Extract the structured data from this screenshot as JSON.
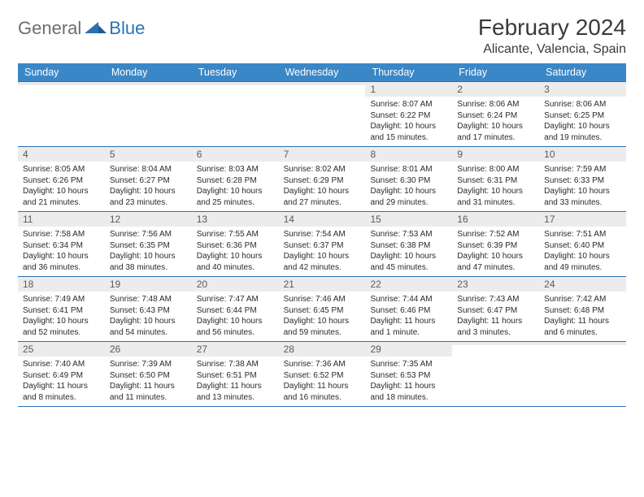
{
  "logo": {
    "general": "General",
    "blue": "Blue"
  },
  "title": "February 2024",
  "location": "Alicante, Valencia, Spain",
  "colors": {
    "header_bg": "#3a87c8",
    "border": "#2a72b5",
    "daynum_bg": "#ececec",
    "text": "#2a2a2a",
    "title_text": "#3a3a3a",
    "logo_gray": "#6e6e6e",
    "logo_blue": "#2a72b5"
  },
  "weekdays": [
    "Sunday",
    "Monday",
    "Tuesday",
    "Wednesday",
    "Thursday",
    "Friday",
    "Saturday"
  ],
  "weeks": [
    [
      {
        "n": "",
        "sr": "",
        "ss": "",
        "d1": "",
        "d2": ""
      },
      {
        "n": "",
        "sr": "",
        "ss": "",
        "d1": "",
        "d2": ""
      },
      {
        "n": "",
        "sr": "",
        "ss": "",
        "d1": "",
        "d2": ""
      },
      {
        "n": "",
        "sr": "",
        "ss": "",
        "d1": "",
        "d2": ""
      },
      {
        "n": "1",
        "sr": "Sunrise: 8:07 AM",
        "ss": "Sunset: 6:22 PM",
        "d1": "Daylight: 10 hours",
        "d2": "and 15 minutes."
      },
      {
        "n": "2",
        "sr": "Sunrise: 8:06 AM",
        "ss": "Sunset: 6:24 PM",
        "d1": "Daylight: 10 hours",
        "d2": "and 17 minutes."
      },
      {
        "n": "3",
        "sr": "Sunrise: 8:06 AM",
        "ss": "Sunset: 6:25 PM",
        "d1": "Daylight: 10 hours",
        "d2": "and 19 minutes."
      }
    ],
    [
      {
        "n": "4",
        "sr": "Sunrise: 8:05 AM",
        "ss": "Sunset: 6:26 PM",
        "d1": "Daylight: 10 hours",
        "d2": "and 21 minutes."
      },
      {
        "n": "5",
        "sr": "Sunrise: 8:04 AM",
        "ss": "Sunset: 6:27 PM",
        "d1": "Daylight: 10 hours",
        "d2": "and 23 minutes."
      },
      {
        "n": "6",
        "sr": "Sunrise: 8:03 AM",
        "ss": "Sunset: 6:28 PM",
        "d1": "Daylight: 10 hours",
        "d2": "and 25 minutes."
      },
      {
        "n": "7",
        "sr": "Sunrise: 8:02 AM",
        "ss": "Sunset: 6:29 PM",
        "d1": "Daylight: 10 hours",
        "d2": "and 27 minutes."
      },
      {
        "n": "8",
        "sr": "Sunrise: 8:01 AM",
        "ss": "Sunset: 6:30 PM",
        "d1": "Daylight: 10 hours",
        "d2": "and 29 minutes."
      },
      {
        "n": "9",
        "sr": "Sunrise: 8:00 AM",
        "ss": "Sunset: 6:31 PM",
        "d1": "Daylight: 10 hours",
        "d2": "and 31 minutes."
      },
      {
        "n": "10",
        "sr": "Sunrise: 7:59 AM",
        "ss": "Sunset: 6:33 PM",
        "d1": "Daylight: 10 hours",
        "d2": "and 33 minutes."
      }
    ],
    [
      {
        "n": "11",
        "sr": "Sunrise: 7:58 AM",
        "ss": "Sunset: 6:34 PM",
        "d1": "Daylight: 10 hours",
        "d2": "and 36 minutes."
      },
      {
        "n": "12",
        "sr": "Sunrise: 7:56 AM",
        "ss": "Sunset: 6:35 PM",
        "d1": "Daylight: 10 hours",
        "d2": "and 38 minutes."
      },
      {
        "n": "13",
        "sr": "Sunrise: 7:55 AM",
        "ss": "Sunset: 6:36 PM",
        "d1": "Daylight: 10 hours",
        "d2": "and 40 minutes."
      },
      {
        "n": "14",
        "sr": "Sunrise: 7:54 AM",
        "ss": "Sunset: 6:37 PM",
        "d1": "Daylight: 10 hours",
        "d2": "and 42 minutes."
      },
      {
        "n": "15",
        "sr": "Sunrise: 7:53 AM",
        "ss": "Sunset: 6:38 PM",
        "d1": "Daylight: 10 hours",
        "d2": "and 45 minutes."
      },
      {
        "n": "16",
        "sr": "Sunrise: 7:52 AM",
        "ss": "Sunset: 6:39 PM",
        "d1": "Daylight: 10 hours",
        "d2": "and 47 minutes."
      },
      {
        "n": "17",
        "sr": "Sunrise: 7:51 AM",
        "ss": "Sunset: 6:40 PM",
        "d1": "Daylight: 10 hours",
        "d2": "and 49 minutes."
      }
    ],
    [
      {
        "n": "18",
        "sr": "Sunrise: 7:49 AM",
        "ss": "Sunset: 6:41 PM",
        "d1": "Daylight: 10 hours",
        "d2": "and 52 minutes."
      },
      {
        "n": "19",
        "sr": "Sunrise: 7:48 AM",
        "ss": "Sunset: 6:43 PM",
        "d1": "Daylight: 10 hours",
        "d2": "and 54 minutes."
      },
      {
        "n": "20",
        "sr": "Sunrise: 7:47 AM",
        "ss": "Sunset: 6:44 PM",
        "d1": "Daylight: 10 hours",
        "d2": "and 56 minutes."
      },
      {
        "n": "21",
        "sr": "Sunrise: 7:46 AM",
        "ss": "Sunset: 6:45 PM",
        "d1": "Daylight: 10 hours",
        "d2": "and 59 minutes."
      },
      {
        "n": "22",
        "sr": "Sunrise: 7:44 AM",
        "ss": "Sunset: 6:46 PM",
        "d1": "Daylight: 11 hours",
        "d2": "and 1 minute."
      },
      {
        "n": "23",
        "sr": "Sunrise: 7:43 AM",
        "ss": "Sunset: 6:47 PM",
        "d1": "Daylight: 11 hours",
        "d2": "and 3 minutes."
      },
      {
        "n": "24",
        "sr": "Sunrise: 7:42 AM",
        "ss": "Sunset: 6:48 PM",
        "d1": "Daylight: 11 hours",
        "d2": "and 6 minutes."
      }
    ],
    [
      {
        "n": "25",
        "sr": "Sunrise: 7:40 AM",
        "ss": "Sunset: 6:49 PM",
        "d1": "Daylight: 11 hours",
        "d2": "and 8 minutes."
      },
      {
        "n": "26",
        "sr": "Sunrise: 7:39 AM",
        "ss": "Sunset: 6:50 PM",
        "d1": "Daylight: 11 hours",
        "d2": "and 11 minutes."
      },
      {
        "n": "27",
        "sr": "Sunrise: 7:38 AM",
        "ss": "Sunset: 6:51 PM",
        "d1": "Daylight: 11 hours",
        "d2": "and 13 minutes."
      },
      {
        "n": "28",
        "sr": "Sunrise: 7:36 AM",
        "ss": "Sunset: 6:52 PM",
        "d1": "Daylight: 11 hours",
        "d2": "and 16 minutes."
      },
      {
        "n": "29",
        "sr": "Sunrise: 7:35 AM",
        "ss": "Sunset: 6:53 PM",
        "d1": "Daylight: 11 hours",
        "d2": "and 18 minutes."
      },
      {
        "n": "",
        "sr": "",
        "ss": "",
        "d1": "",
        "d2": ""
      },
      {
        "n": "",
        "sr": "",
        "ss": "",
        "d1": "",
        "d2": ""
      }
    ]
  ]
}
